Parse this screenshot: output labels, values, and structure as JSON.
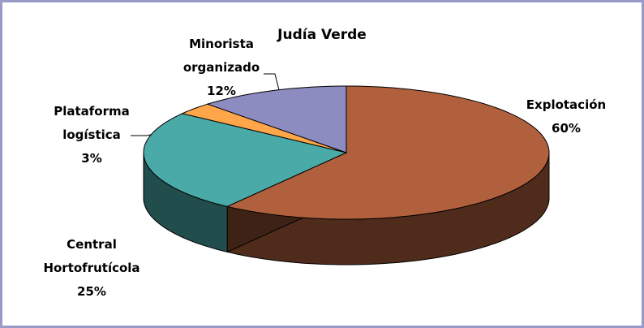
{
  "chart_data": {
    "type": "pie3d",
    "title": "Judía Verde",
    "categories": [
      "Explotación",
      "Central Hortofrutícola",
      "Plataforma logística",
      "Minorista organizado"
    ],
    "values": [
      60,
      25,
      3,
      12
    ],
    "value_labels": [
      "60%",
      "25%",
      "3%",
      "12%"
    ],
    "colors": [
      "#b0603c",
      "#4aaaa8",
      "#ffa64a",
      "#8c8cc0"
    ]
  }
}
